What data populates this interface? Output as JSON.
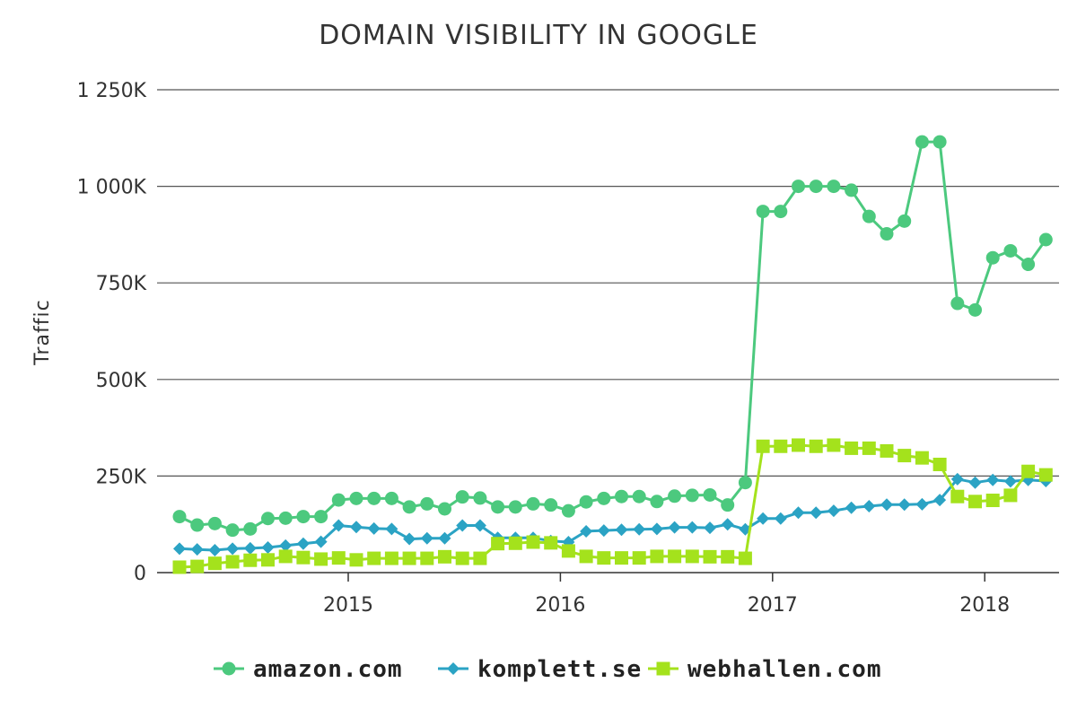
{
  "chart_data": {
    "type": "line",
    "title": "DOMAIN VISIBILITY IN GOOGLE",
    "xlabel": "",
    "ylabel": "Traffic",
    "x_start": "2014-03",
    "x_tick_labels": [
      "2015",
      "2016",
      "2017",
      "2018"
    ],
    "x_tick_dates": [
      "2015-01",
      "2016-01",
      "2017-01",
      "2018-01"
    ],
    "y_tick_labels": [
      "0",
      "250K",
      "500K",
      "750K",
      "1 000K",
      "1 250K"
    ],
    "y_tick_values": [
      0,
      250000,
      500000,
      750000,
      1000000,
      1250000
    ],
    "ylim": [
      0,
      1250000
    ],
    "grid": true,
    "legend_position": "bottom",
    "colors": {
      "amazon": "#4cc97e",
      "komplett": "#2ba3c4",
      "webhallen": "#a4e21c"
    },
    "x": [
      "2014-03",
      "2014-04",
      "2014-05",
      "2014-06",
      "2014-07",
      "2014-08",
      "2014-09",
      "2014-10",
      "2014-11",
      "2014-12",
      "2015-01",
      "2015-02",
      "2015-03",
      "2015-04",
      "2015-05",
      "2015-06",
      "2015-07",
      "2015-08",
      "2015-09",
      "2015-10",
      "2015-11",
      "2015-12",
      "2016-01",
      "2016-02",
      "2016-03",
      "2016-04",
      "2016-05",
      "2016-06",
      "2016-07",
      "2016-08",
      "2016-09",
      "2016-10",
      "2016-11",
      "2016-12",
      "2017-01",
      "2017-02",
      "2017-03",
      "2017-04",
      "2017-05",
      "2017-06",
      "2017-07",
      "2017-08",
      "2017-09",
      "2017-10",
      "2017-11",
      "2017-12",
      "2018-01",
      "2018-02",
      "2018-03",
      "2018-04"
    ],
    "series": [
      {
        "name": "amazon.com",
        "marker": "circle",
        "values": [
          145000,
          123000,
          127000,
          110000,
          113000,
          140000,
          141000,
          145000,
          145000,
          188000,
          192000,
          192000,
          192000,
          170000,
          178000,
          165000,
          196000,
          193000,
          170000,
          170000,
          178000,
          175000,
          160000,
          183000,
          192000,
          197000,
          197000,
          184000,
          198000,
          200000,
          201000,
          175000,
          233000,
          935000,
          935000,
          1000000,
          1000000,
          1000000,
          990000,
          922000,
          877000,
          910000,
          1115000,
          1115000,
          697000,
          680000,
          815000,
          833000,
          798000,
          862000
        ]
      },
      {
        "name": "komplett.se",
        "marker": "diamond",
        "values": [
          62000,
          60000,
          58000,
          62000,
          63000,
          65000,
          70000,
          75000,
          80000,
          122000,
          118000,
          114000,
          113000,
          87000,
          89000,
          89000,
          122000,
          122000,
          90000,
          90000,
          90000,
          82000,
          79000,
          107000,
          109000,
          111000,
          112000,
          113000,
          117000,
          117000,
          116000,
          125000,
          112000,
          140000,
          140000,
          155000,
          155000,
          160000,
          168000,
          172000,
          176000,
          176000,
          177000,
          188000,
          242000,
          233000,
          240000,
          236000,
          240000,
          237000
        ]
      },
      {
        "name": "webhallen.com",
        "marker": "square",
        "values": [
          14000,
          16000,
          24000,
          28000,
          32000,
          33000,
          42000,
          39000,
          35000,
          38000,
          33000,
          37000,
          37000,
          37000,
          37000,
          41000,
          37000,
          37000,
          75000,
          76000,
          79000,
          77000,
          56000,
          42000,
          38000,
          38000,
          38000,
          42000,
          42000,
          42000,
          41000,
          41000,
          37000,
          327000,
          327000,
          330000,
          327000,
          330000,
          322000,
          322000,
          315000,
          303000,
          297000,
          280000,
          197000,
          184000,
          187000,
          200000,
          262000,
          253000
        ]
      }
    ]
  }
}
